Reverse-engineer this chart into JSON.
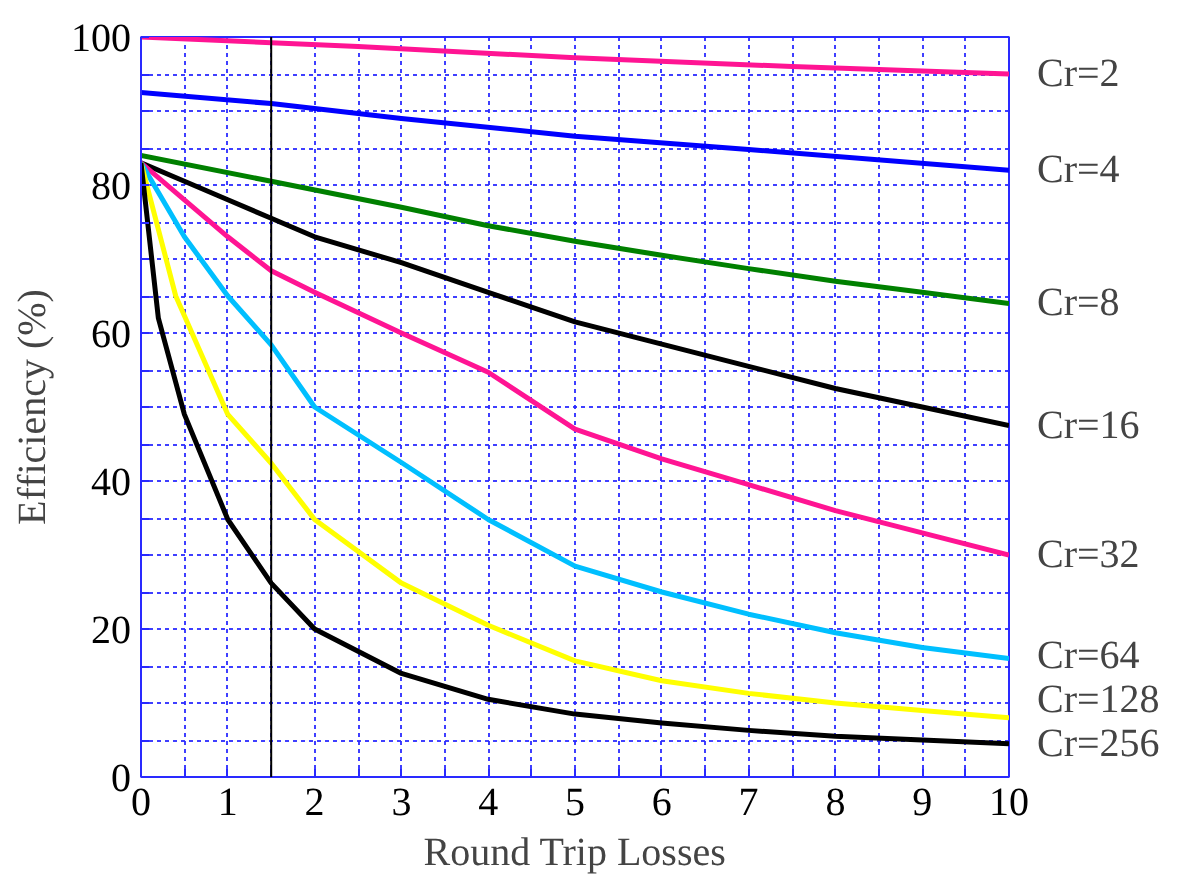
{
  "chart_data": {
    "type": "line",
    "xlabel": "Round Trip Losses",
    "ylabel": "Efficiency (%)",
    "xlim": [
      0,
      10
    ],
    "ylim": [
      0,
      100
    ],
    "xticks": [
      0,
      {
        "value": 0.5,
        "label": null
      },
      1,
      {
        "value": 1.5,
        "label": null
      },
      2,
      {
        "value": 2.5,
        "label": null
      },
      3,
      {
        "value": 3.5,
        "label": null
      },
      4,
      {
        "value": 4.5,
        "label": null
      },
      5,
      {
        "value": 5.5,
        "label": null
      },
      6,
      {
        "value": 6.5,
        "label": null
      },
      7,
      {
        "value": 7.5,
        "label": null
      },
      8,
      {
        "value": 8.5,
        "label": null
      },
      9,
      {
        "value": 9.5,
        "label": null
      },
      10
    ],
    "yticks": [
      0,
      {
        "value": 5,
        "label": null
      },
      {
        "value": 10,
        "label": null
      },
      {
        "value": 15,
        "label": null
      },
      20,
      {
        "value": 25,
        "label": null
      },
      {
        "value": 30,
        "label": null
      },
      {
        "value": 35,
        "label": null
      },
      40,
      {
        "value": 45,
        "label": null
      },
      {
        "value": 50,
        "label": null
      },
      {
        "value": 55,
        "label": null
      },
      60,
      {
        "value": 65,
        "label": null
      },
      {
        "value": 70,
        "label": null
      },
      {
        "value": 75,
        "label": null
      },
      80,
      {
        "value": 85,
        "label": null
      },
      {
        "value": 90,
        "label": null
      },
      {
        "value": 95,
        "label": null
      },
      100
    ],
    "grid": true,
    "marker": "none",
    "line_style": "solid",
    "ref_lines": [
      {
        "axis": "x",
        "value": 1.5,
        "label": null,
        "color": "#000000"
      }
    ],
    "series": [
      {
        "name": "Cr=2",
        "color": "#ff1493",
        "x": [
          0,
          2.5,
          5,
          7.5,
          10
        ],
        "values": [
          100,
          98.7,
          97.2,
          96,
          95
        ]
      },
      {
        "name": "Cr=4",
        "color": "#0000ff",
        "x": [
          0,
          1.5,
          3,
          5,
          7,
          10
        ],
        "values": [
          92.5,
          91,
          89,
          86.6,
          84.8,
          82
        ]
      },
      {
        "name": "Cr=8",
        "color": "#008000",
        "x": [
          0,
          1.5,
          3,
          4,
          5,
          6,
          7,
          8,
          9,
          10
        ],
        "values": [
          84,
          80.5,
          77,
          74.5,
          72.4,
          70.5,
          68.7,
          67,
          65.5,
          64
        ]
      },
      {
        "name": "Cr=16",
        "color": "#000000",
        "x": [
          0,
          0.5,
          1,
          1.5,
          2,
          3,
          4,
          5,
          6,
          7,
          8,
          9,
          10
        ],
        "values": [
          83,
          80.5,
          78,
          75.5,
          73,
          69.5,
          65.5,
          61.5,
          58.5,
          55.5,
          52.5,
          50,
          47.5
        ]
      },
      {
        "name": "Cr=32",
        "color": "#ff1493",
        "x": [
          0,
          0.5,
          1,
          1.5,
          2,
          3,
          4,
          5,
          6,
          7,
          8,
          9,
          10
        ],
        "values": [
          83,
          78,
          73,
          68.4,
          65.5,
          60,
          54.7,
          47,
          43,
          39.5,
          36,
          33,
          30
        ]
      },
      {
        "name": "Cr=64",
        "color": "#00bfff",
        "x": [
          0,
          0.5,
          1,
          1.5,
          2,
          3,
          4,
          5,
          6,
          7,
          8,
          9,
          10
        ],
        "values": [
          83,
          73,
          65,
          58.4,
          50,
          42.5,
          34.8,
          28.5,
          25,
          22,
          19.5,
          17.5,
          16
        ]
      },
      {
        "name": "Cr=128",
        "color": "#ffff00",
        "x": [
          0,
          0.4,
          1,
          1.5,
          2,
          3,
          4,
          5,
          6,
          7,
          8,
          9,
          10
        ],
        "values": [
          83,
          65,
          49,
          42.4,
          34.8,
          26.2,
          20.5,
          15.7,
          13,
          11.3,
          10,
          9,
          8
        ]
      },
      {
        "name": "Cr=256",
        "color": "#000000",
        "x": [
          0,
          0.2,
          0.5,
          1,
          1.5,
          2,
          3,
          4,
          5,
          6,
          7,
          8,
          9,
          10
        ],
        "values": [
          83,
          62,
          49,
          34.8,
          26.2,
          20,
          14,
          10.5,
          8.5,
          7.3,
          6.3,
          5.5,
          5,
          4.5
        ]
      }
    ]
  }
}
